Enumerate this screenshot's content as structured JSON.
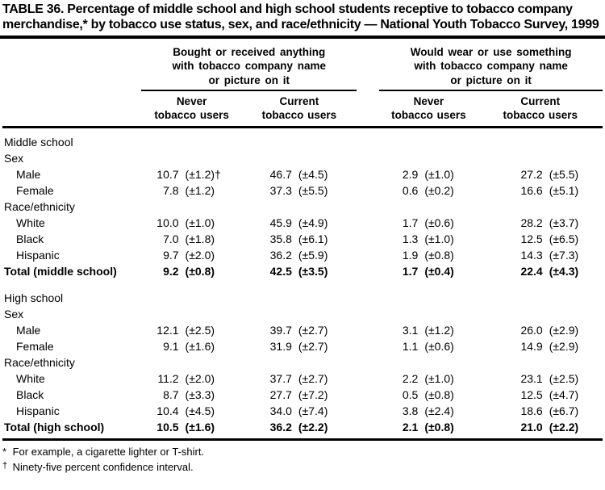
{
  "title": "TABLE 36. Percentage of middle school and high school students receptive to tobacco company merchandise,* by tobacco use status, sex, and race/ethnicity — National Youth Tobacco Survey, 1999",
  "table": {
    "column_groups": [
      {
        "label": "Bought or received anything\nwith tobacco company name\nor picture on it"
      },
      {
        "label": "Would wear or use something\nwith tobacco company name\nor picture on it"
      }
    ],
    "subcolumns": {
      "never": "Never\ntobacco users",
      "current": "Current\ntobacco users"
    },
    "rows": [
      {
        "type": "section",
        "label": "Middle school"
      },
      {
        "type": "section",
        "label": "Sex"
      },
      {
        "type": "data",
        "label": "Male",
        "cells": [
          [
            "10.7",
            "(±1.2)†"
          ],
          [
            "46.7",
            "(±4.5)"
          ],
          [
            "2.9",
            "(±1.0)"
          ],
          [
            "27.2",
            "(±5.5)"
          ]
        ]
      },
      {
        "type": "data",
        "label": "Female",
        "cells": [
          [
            "7.8",
            "(±1.2)"
          ],
          [
            "37.3",
            "(±5.5)"
          ],
          [
            "0.6",
            "(±0.2)"
          ],
          [
            "16.6",
            "(±5.1)"
          ]
        ]
      },
      {
        "type": "section",
        "label": "Race/ethnicity"
      },
      {
        "type": "data",
        "label": "White",
        "cells": [
          [
            "10.0",
            "(±1.0)"
          ],
          [
            "45.9",
            "(±4.9)"
          ],
          [
            "1.7",
            "(±0.6)"
          ],
          [
            "28.2",
            "(±3.7)"
          ]
        ]
      },
      {
        "type": "data",
        "label": "Black",
        "cells": [
          [
            "7.0",
            "(±1.8)"
          ],
          [
            "35.8",
            "(±6.1)"
          ],
          [
            "1.3",
            "(±1.0)"
          ],
          [
            "12.5",
            "(±6.5)"
          ]
        ]
      },
      {
        "type": "data",
        "label": "Hispanic",
        "cells": [
          [
            "9.7",
            "(±2.0)"
          ],
          [
            "36.2",
            "(±5.9)"
          ],
          [
            "1.9",
            "(±0.8)"
          ],
          [
            "14.3",
            "(±7.3)"
          ]
        ]
      },
      {
        "type": "total",
        "label": "Total (middle school)",
        "cells": [
          [
            "9.2",
            "(±0.8)"
          ],
          [
            "42.5",
            "(±3.5)"
          ],
          [
            "1.7",
            "(±0.4)"
          ],
          [
            "22.4",
            "(±4.3)"
          ]
        ]
      },
      {
        "type": "section",
        "label": "High school",
        "gap": true
      },
      {
        "type": "section",
        "label": "Sex"
      },
      {
        "type": "data",
        "label": "Male",
        "cells": [
          [
            "12.1",
            "(±2.5)"
          ],
          [
            "39.7",
            "(±2.7)"
          ],
          [
            "3.1",
            "(±1.2)"
          ],
          [
            "26.0",
            "(±2.9)"
          ]
        ]
      },
      {
        "type": "data",
        "label": "Female",
        "cells": [
          [
            "9.1",
            "(±1.6)"
          ],
          [
            "31.9",
            "(±2.7)"
          ],
          [
            "1.1",
            "(±0.6)"
          ],
          [
            "14.9",
            "(±2.9)"
          ]
        ]
      },
      {
        "type": "section",
        "label": "Race/ethnicity"
      },
      {
        "type": "data",
        "label": "White",
        "cells": [
          [
            "11.2",
            "(±2.0)"
          ],
          [
            "37.7",
            "(±2.7)"
          ],
          [
            "2.2",
            "(±1.0)"
          ],
          [
            "23.1",
            "(±2.5)"
          ]
        ]
      },
      {
        "type": "data",
        "label": "Black",
        "cells": [
          [
            "8.7",
            "(±3.3)"
          ],
          [
            "27.7",
            "(±7.2)"
          ],
          [
            "0.5",
            "(±0.8)"
          ],
          [
            "12.5",
            "(±4.7)"
          ]
        ]
      },
      {
        "type": "data",
        "label": "Hispanic",
        "cells": [
          [
            "10.4",
            "(±4.5)"
          ],
          [
            "34.0",
            "(±7.4)"
          ],
          [
            "3.8",
            "(±2.4)"
          ],
          [
            "18.6",
            "(±6.7)"
          ]
        ]
      },
      {
        "type": "total",
        "label": "Total (high school)",
        "cells": [
          [
            "10.5",
            "(±1.6)"
          ],
          [
            "36.2",
            "(±2.2)"
          ],
          [
            "2.1",
            "(±0.8)"
          ],
          [
            "21.0",
            "(±2.2)"
          ]
        ]
      }
    ]
  },
  "footnotes": [
    {
      "marker": "*",
      "text": "For example, a cigarette lighter or T-shirt."
    },
    {
      "marker": "†",
      "text": "Ninety-five percent confidence interval."
    }
  ]
}
